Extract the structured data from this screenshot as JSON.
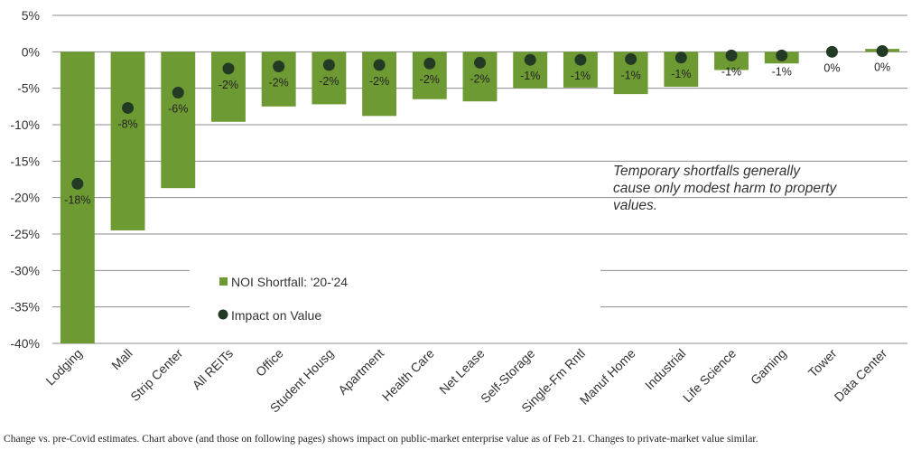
{
  "chart_data": {
    "type": "bar",
    "categories": [
      "Lodging",
      "Mall",
      "Strip Center",
      "All REITs",
      "Office",
      "Student Housg",
      "Apartment",
      "Health Care",
      "Net Lease",
      "Self-Storage",
      "Single-Fm Rntl",
      "Manuf Home",
      "Industrial",
      "Life Science",
      "Gaming",
      "Tower",
      "Data Center"
    ],
    "series": [
      {
        "name": "NOI Shortfall: '20-'24",
        "kind": "bar",
        "color": "#6e9a34",
        "values": [
          -40,
          -24.5,
          -18.7,
          -9.6,
          -7.5,
          -7.2,
          -8.8,
          -6.5,
          -6.8,
          -5.0,
          -4.9,
          -5.8,
          -4.8,
          -2.5,
          -1.6,
          0,
          0.4
        ]
      },
      {
        "name": "Impact on Value",
        "kind": "marker",
        "color": "#233a24",
        "values": [
          -18.1,
          -7.7,
          -5.6,
          -2.3,
          -2.0,
          -1.8,
          -1.8,
          -1.6,
          -1.5,
          -1.1,
          -1.1,
          -1.0,
          -0.8,
          -0.5,
          -0.5,
          0,
          0.1
        ],
        "labels": [
          "-18%",
          "-8%",
          "-6%",
          "-2%",
          "-2%",
          "-2%",
          "-2%",
          "-2%",
          "-2%",
          "-1%",
          "-1%",
          "-1%",
          "-1%",
          "-1%",
          "-1%",
          "0%",
          "0%"
        ]
      }
    ],
    "yticks": [
      "5%",
      "0%",
      "-5%",
      "-10%",
      "-15%",
      "-20%",
      "-25%",
      "-30%",
      "-35%",
      "-40%"
    ],
    "ylim": [
      -40,
      5
    ],
    "ytick_step": 5,
    "xlabel": "",
    "ylabel": "",
    "title": "",
    "grid": true,
    "legend_position": "lower-left"
  },
  "annotation": "Temporary shortfalls generally cause only modest harm to property values.",
  "footnote": "Change vs. pre-Covid estimates. Chart above (and those on following pages) shows impact on public-market enterprise value as of Feb 21. Changes to private-market value similar."
}
